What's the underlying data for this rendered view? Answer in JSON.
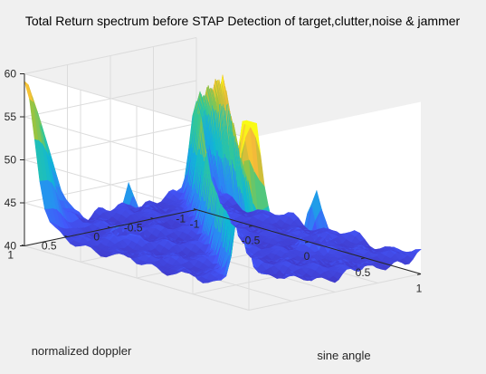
{
  "figure": {
    "background": "#f0f0f0",
    "axes_background": "#ffffff"
  },
  "chart_data": {
    "type": "surface",
    "title": "Total Return spectrum before STAP Detection of target,clutter,noise & jammer",
    "xlabel": "sine angle",
    "ylabel": "normalized doppler",
    "zlabel": "",
    "xlim": [
      -1,
      1
    ],
    "ylim": [
      -1,
      1
    ],
    "zlim": [
      40,
      60
    ],
    "xticks": [
      "-1",
      "-0.5",
      "0",
      "0.5",
      "1"
    ],
    "yticks": [
      "-1",
      "-0.5",
      "0",
      "0.5",
      "1"
    ],
    "zticks": [
      "40",
      "45",
      "50",
      "55",
      "60"
    ],
    "grid": true,
    "colormap": "parula",
    "description_values": {
      "floor_level_db": 42,
      "clutter_ridge_peak_db": 61,
      "jammer_sidelobe_corner_peak_db": 59,
      "target_peaks_db": [
        48.5,
        48.5
      ],
      "target_peak_locations": [
        {
          "sine_angle": -0.45,
          "normalized_doppler": 0.5
        },
        {
          "sine_angle": 0.45,
          "normalized_doppler": -0.5
        }
      ]
    }
  }
}
